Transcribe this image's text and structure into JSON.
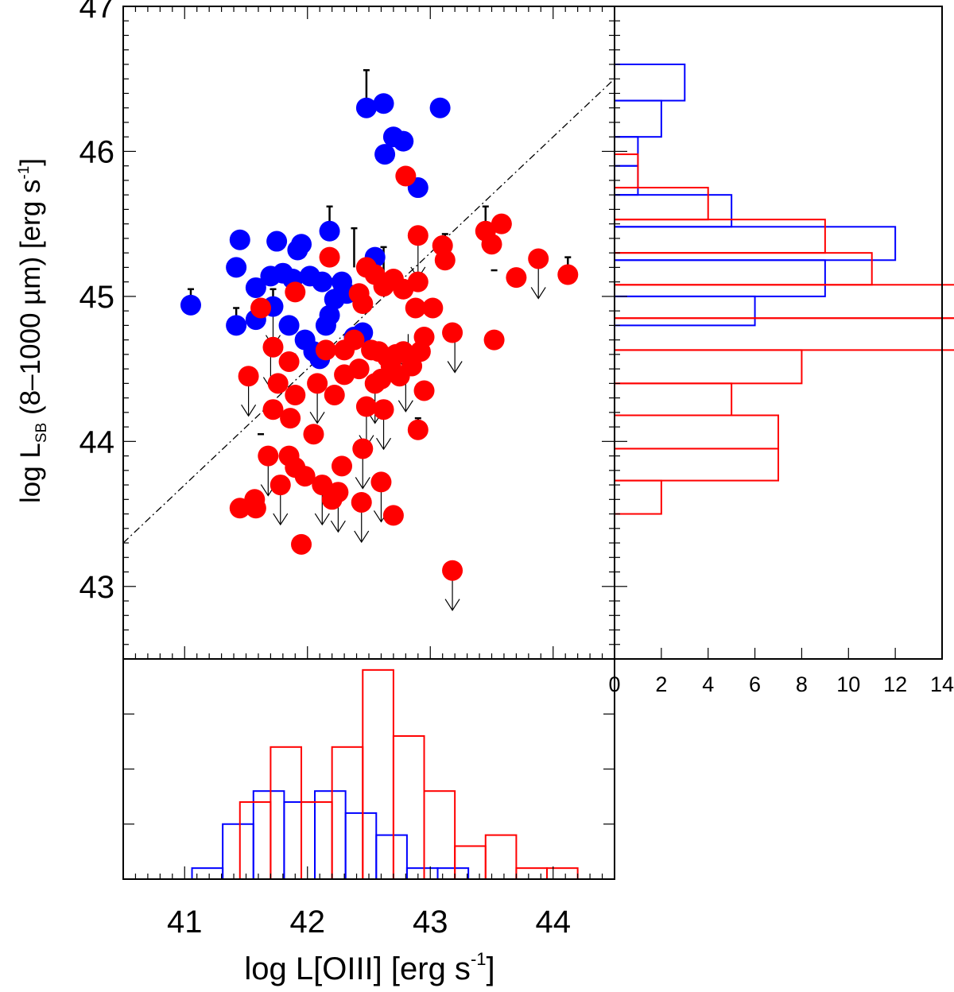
{
  "chart_data": [
    {
      "panel": "main-scatter",
      "type": "scatter",
      "ylabel": {
        "prefix": "log L",
        "subscript": "SB",
        "middle": " (8–1000 µm) [erg s",
        "superscript": "-1",
        "suffix": "]"
      },
      "xlim": [
        40.5,
        44.5
      ],
      "ylim": [
        42.5,
        47.0
      ],
      "y_ticks": [
        "43",
        "44",
        "45",
        "46",
        "47"
      ],
      "reference_line": {
        "x": [
          40.5,
          44.5
        ],
        "y": [
          43.3,
          46.5
        ],
        "style": "dash-dot"
      },
      "series": [
        {
          "color": "#0000ff",
          "points": [
            [
              41.05,
              44.94
            ],
            [
              41.42,
              44.8
            ],
            [
              41.42,
              45.2
            ],
            [
              41.45,
              45.39
            ],
            [
              41.58,
              44.84
            ],
            [
              41.58,
              45.06
            ],
            [
              41.7,
              45.14
            ],
            [
              41.72,
              44.93
            ],
            [
              41.75,
              45.38
            ],
            [
              41.8,
              45.16
            ],
            [
              41.85,
              44.8
            ],
            [
              41.88,
              45.12
            ],
            [
              41.92,
              45.32
            ],
            [
              41.95,
              45.36
            ],
            [
              41.98,
              44.7
            ],
            [
              42.02,
              45.14
            ],
            [
              42.05,
              44.62
            ],
            [
              42.1,
              44.57
            ],
            [
              42.12,
              45.1
            ],
            [
              42.15,
              44.8
            ],
            [
              42.18,
              44.87
            ],
            [
              42.18,
              45.45
            ],
            [
              42.22,
              44.98
            ],
            [
              42.28,
              45.1
            ],
            [
              42.32,
              45.02
            ],
            [
              42.38,
              44.72
            ],
            [
              42.45,
              44.75
            ],
            [
              42.55,
              45.27
            ],
            [
              42.48,
              46.3
            ],
            [
              42.62,
              46.33
            ],
            [
              42.63,
              45.98
            ],
            [
              42.7,
              46.1
            ],
            [
              42.78,
              46.07
            ],
            [
              42.9,
              45.75
            ],
            [
              43.08,
              46.3
            ]
          ]
        },
        {
          "color": "#ff0000",
          "points": [
            [
              41.45,
              43.54
            ],
            [
              41.52,
              44.45
            ],
            [
              41.57,
              43.6
            ],
            [
              41.58,
              43.54
            ],
            [
              41.62,
              44.92
            ],
            [
              41.68,
              43.9
            ],
            [
              41.72,
              44.22
            ],
            [
              41.72,
              44.65
            ],
            [
              41.76,
              44.4
            ],
            [
              41.78,
              43.7
            ],
            [
              41.85,
              44.55
            ],
            [
              41.85,
              43.9
            ],
            [
              41.86,
              44.16
            ],
            [
              41.9,
              45.03
            ],
            [
              41.9,
              44.32
            ],
            [
              41.9,
              43.82
            ],
            [
              41.95,
              43.29
            ],
            [
              41.98,
              43.76
            ],
            [
              42.05,
              44.05
            ],
            [
              42.08,
              44.4
            ],
            [
              42.12,
              43.7
            ],
            [
              42.15,
              44.63
            ],
            [
              42.18,
              45.27
            ],
            [
              42.2,
              43.6
            ],
            [
              42.22,
              44.32
            ],
            [
              42.25,
              43.65
            ],
            [
              42.28,
              43.83
            ],
            [
              42.3,
              44.46
            ],
            [
              42.3,
              44.63
            ],
            [
              42.38,
              44.7
            ],
            [
              42.42,
              44.5
            ],
            [
              42.42,
              45.02
            ],
            [
              42.44,
              43.58
            ],
            [
              42.45,
              43.95
            ],
            [
              42.45,
              44.95
            ],
            [
              42.48,
              45.2
            ],
            [
              42.48,
              44.24
            ],
            [
              42.52,
              44.63
            ],
            [
              42.55,
              45.15
            ],
            [
              42.55,
              44.4
            ],
            [
              42.58,
              44.62
            ],
            [
              42.6,
              44.43
            ],
            [
              42.6,
              43.72
            ],
            [
              42.62,
              45.07
            ],
            [
              42.62,
              44.22
            ],
            [
              42.65,
              44.58
            ],
            [
              42.68,
              44.52
            ],
            [
              42.7,
              45.12
            ],
            [
              42.7,
              43.49
            ],
            [
              42.72,
              44.6
            ],
            [
              42.75,
              44.45
            ],
            [
              42.78,
              45.05
            ],
            [
              42.78,
              44.62
            ],
            [
              42.8,
              45.83
            ],
            [
              42.85,
              44.52
            ],
            [
              42.88,
              44.92
            ],
            [
              42.9,
              45.42
            ],
            [
              42.9,
              45.1
            ],
            [
              42.9,
              44.08
            ],
            [
              42.92,
              44.62
            ],
            [
              42.95,
              44.72
            ],
            [
              42.95,
              44.35
            ],
            [
              43.02,
              44.92
            ],
            [
              43.1,
              45.35
            ],
            [
              43.12,
              45.25
            ],
            [
              43.18,
              44.75
            ],
            [
              43.18,
              43.11
            ],
            [
              43.45,
              45.45
            ],
            [
              43.5,
              45.36
            ],
            [
              43.52,
              44.7
            ],
            [
              43.58,
              45.5
            ],
            [
              43.7,
              45.13
            ],
            [
              43.88,
              45.26
            ],
            [
              44.12,
              45.15
            ]
          ]
        }
      ],
      "upper_limits": [
        [
          41.52,
          44.45
        ],
        [
          41.68,
          43.9
        ],
        [
          41.7,
          44.64
        ],
        [
          41.78,
          43.7
        ],
        [
          42.08,
          44.4
        ],
        [
          42.12,
          43.7
        ],
        [
          42.25,
          43.65
        ],
        [
          42.44,
          43.58
        ],
        [
          42.45,
          43.95
        ],
        [
          42.62,
          44.22
        ],
        [
          42.6,
          43.72
        ],
        [
          42.8,
          44.48
        ],
        [
          42.82,
          44.74
        ],
        [
          42.9,
          45.4
        ],
        [
          43.2,
          44.75
        ],
        [
          43.18,
          43.11
        ],
        [
          43.88,
          45.26
        ],
        [
          41.72,
          44.93
        ],
        [
          42.48,
          44.24
        ],
        [
          42.55,
          44.4
        ]
      ],
      "error_bars": [
        [
          41.05,
          44.94,
          45.05,
          44.94
        ],
        [
          41.42,
          44.8,
          44.92,
          44.8
        ],
        [
          41.72,
          44.93,
          45.05,
          44.93
        ],
        [
          42.18,
          45.45,
          45.62,
          45.45
        ],
        [
          42.48,
          46.3,
          46.56,
          46.3
        ],
        [
          42.05,
          44.62,
          44.62,
          44.05
        ],
        [
          42.15,
          44.63,
          44.63,
          43.5
        ],
        [
          42.3,
          44.46,
          44.46,
          43.73
        ],
        [
          42.38,
          45.2,
          45.47,
          45.2
        ],
        [
          42.55,
          45.15,
          45.32,
          45.15
        ],
        [
          42.62,
          45.07,
          45.34,
          45.07
        ],
        [
          41.62,
          44.05,
          44.05,
          43.6
        ],
        [
          43.12,
          45.25,
          45.43,
          45.25
        ],
        [
          43.45,
          45.45,
          45.62,
          45.45
        ],
        [
          43.7,
          45.13,
          45.13,
          44.97
        ],
        [
          44.12,
          45.15,
          45.27,
          45.15
        ],
        [
          43.52,
          45.18,
          45.18,
          44.62
        ],
        [
          42.9,
          44.08,
          44.16,
          44.08
        ],
        [
          41.88,
          44.6,
          44.6,
          44.15
        ],
        [
          42.22,
          44.98,
          45.12,
          44.98
        ]
      ]
    },
    {
      "panel": "right-histogram",
      "type": "bar",
      "orientation": "horizontal",
      "xlim": [
        0,
        14
      ],
      "x_ticks": [
        "0",
        "2",
        "4",
        "6",
        "8",
        "10",
        "12",
        "14"
      ],
      "series": [
        {
          "color": "#0000ff",
          "bins": [
            [
              44.8,
              45.0,
              6
            ],
            [
              45.0,
              45.25,
              9
            ],
            [
              45.25,
              45.48,
              12
            ],
            [
              45.48,
              45.7,
              5
            ],
            [
              45.7,
              45.9,
              1
            ],
            [
              45.9,
              46.1,
              1
            ],
            [
              46.1,
              46.35,
              2
            ],
            [
              46.35,
              46.6,
              3
            ]
          ]
        },
        {
          "color": "#ff0000",
          "bins": [
            [
              43.5,
              43.73,
              2
            ],
            [
              43.73,
              43.95,
              7
            ],
            [
              43.95,
              44.18,
              7
            ],
            [
              44.18,
              44.4,
              5
            ],
            [
              44.4,
              44.63,
              8
            ],
            [
              44.63,
              44.85,
              17
            ],
            [
              44.85,
              45.08,
              15
            ],
            [
              45.08,
              45.3,
              11
            ],
            [
              45.3,
              45.53,
              9
            ],
            [
              45.53,
              45.75,
              4
            ],
            [
              45.75,
              45.98,
              1
            ]
          ]
        }
      ]
    },
    {
      "panel": "bottom-histogram",
      "type": "bar",
      "xlabel": {
        "prefix": "log L[OIII] [erg s",
        "superscript": "-1",
        "suffix": "]"
      },
      "xlim": [
        40.5,
        44.5
      ],
      "x_ticks": [
        "41",
        "42",
        "43",
        "44"
      ],
      "series": [
        {
          "color": "#0000ff",
          "bins": [
            [
              41.06,
              41.31,
              1
            ],
            [
              41.31,
              41.56,
              5
            ],
            [
              41.56,
              41.81,
              8
            ],
            [
              41.81,
              42.06,
              7
            ],
            [
              42.06,
              42.31,
              8
            ],
            [
              42.31,
              42.56,
              6
            ],
            [
              42.56,
              42.81,
              4
            ],
            [
              42.81,
              43.06,
              1
            ],
            [
              43.06,
              43.31,
              1
            ]
          ]
        },
        {
          "color": "#ff0000",
          "bins": [
            [
              41.45,
              41.7,
              7
            ],
            [
              41.7,
              41.95,
              12
            ],
            [
              41.95,
              42.2,
              7
            ],
            [
              42.2,
              42.45,
              12
            ],
            [
              42.45,
              42.7,
              19
            ],
            [
              42.7,
              42.95,
              13
            ],
            [
              42.95,
              43.2,
              8
            ],
            [
              43.2,
              43.45,
              3
            ],
            [
              43.45,
              43.7,
              4
            ],
            [
              43.7,
              43.95,
              1
            ],
            [
              43.95,
              44.2,
              1
            ]
          ]
        }
      ]
    }
  ]
}
